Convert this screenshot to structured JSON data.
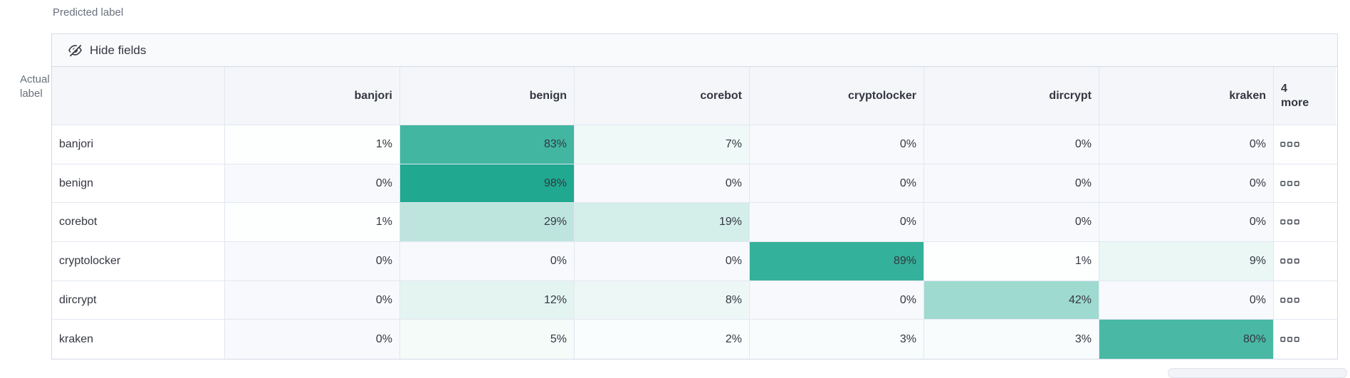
{
  "axes": {
    "predicted_label": "Predicted label",
    "actual_label": "Actual label"
  },
  "toolbar": {
    "hide_fields_label": "Hide fields"
  },
  "chart_data": {
    "type": "heatmap",
    "x_axis_title": "Predicted label",
    "y_axis_title": "Actual label",
    "columns": [
      "banjori",
      "benign",
      "corebot",
      "cryptolocker",
      "dircrypt",
      "kraken"
    ],
    "hidden_columns_label": "4 more",
    "rows": [
      "banjori",
      "benign",
      "corebot",
      "cryptolocker",
      "dircrypt",
      "kraken"
    ],
    "values_percent": [
      [
        1,
        83,
        7,
        0,
        0,
        0
      ],
      [
        0,
        98,
        0,
        0,
        0,
        0
      ],
      [
        1,
        29,
        19,
        0,
        0,
        0
      ],
      [
        0,
        0,
        0,
        89,
        1,
        9
      ],
      [
        0,
        12,
        8,
        0,
        42,
        0
      ],
      [
        0,
        5,
        2,
        3,
        3,
        80
      ]
    ],
    "value_suffix": "%",
    "heat_base_color": "#1BA78E",
    "zero_cell_color": "#F8F9FC"
  }
}
